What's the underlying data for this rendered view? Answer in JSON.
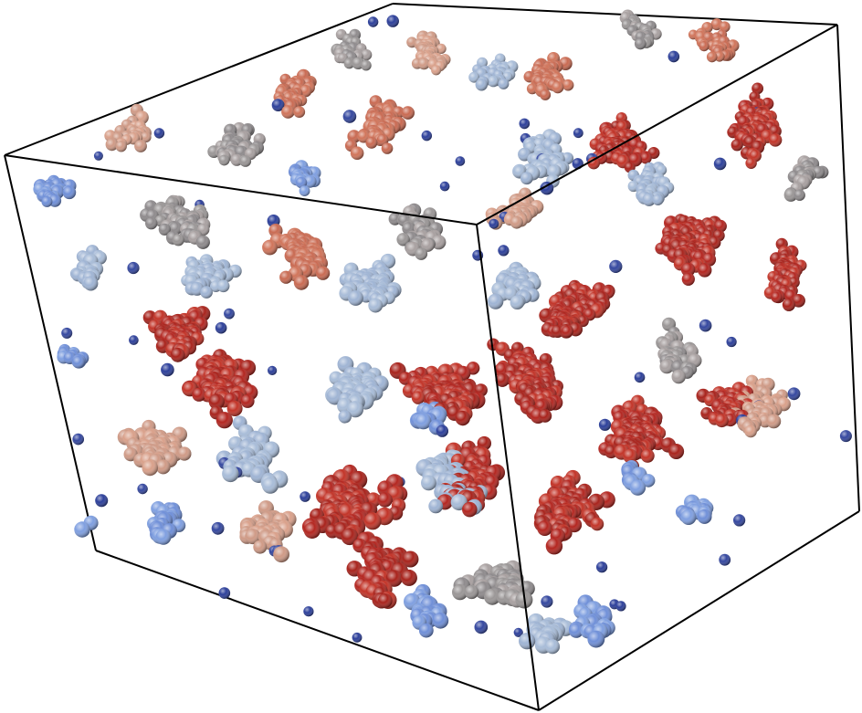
{
  "scene": {
    "background": "#ffffff",
    "box_edge_color": "#000000",
    "palette": {
      "red": [
        "#b32620",
        "#c23428",
        "#a8231c"
      ],
      "salmon": [
        "#d0745a",
        "#c96a52"
      ],
      "peach": [
        "#d9a08a",
        "#cf9a86"
      ],
      "gray": [
        "#9a9696",
        "#8e8a8c",
        "#a8a0a0"
      ],
      "light_blue": [
        "#a8bcd8",
        "#9fb4d4"
      ],
      "blue": [
        "#7f9fe0",
        "#6f8fd8"
      ],
      "dark_blue": [
        "#2c3f9a",
        "#34479f"
      ]
    }
  }
}
